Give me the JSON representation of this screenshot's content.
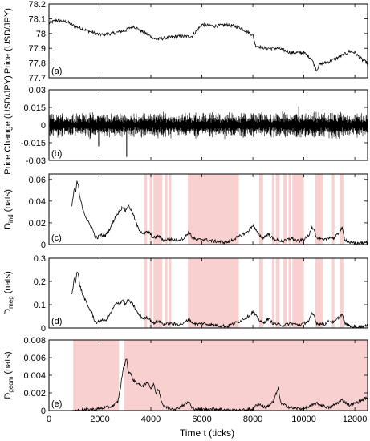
{
  "figure": {
    "xlabel": "Time t (ticks)",
    "x_tick_labels": [
      "0",
      "2000",
      "4000",
      "6000",
      "8000",
      "10000",
      "12000"
    ]
  },
  "chart_data": [
    {
      "type": "line",
      "panel_label": "(a)",
      "ylabel": "Price (USD/JPY)",
      "xlim": [
        0,
        12500
      ],
      "ylim": [
        77.7,
        78.2
      ],
      "y_ticks": [
        77.7,
        77.8,
        77.9,
        78,
        78.1,
        78.2
      ],
      "y_tick_labels": [
        "77.7",
        "77.8",
        "77.9",
        "78",
        "78.1",
        "78.2"
      ],
      "series": [
        {
          "x": [
            0,
            300,
            700,
            1000,
            1500,
            2000,
            2500,
            3000,
            3300,
            3800,
            4200,
            5000,
            5600,
            6000,
            6500,
            7000,
            7500,
            8000,
            8100,
            8500,
            9000,
            9500,
            10000,
            10300,
            10500,
            10600,
            11000,
            11500,
            11800,
            12000,
            12300,
            12500
          ],
          "y": [
            78.07,
            78.09,
            78.08,
            78.05,
            78.02,
            77.99,
            78.0,
            78.02,
            78.05,
            78.0,
            77.96,
            77.98,
            77.98,
            78.06,
            78.05,
            78.06,
            78.04,
            77.99,
            77.92,
            77.9,
            77.9,
            77.87,
            77.87,
            77.83,
            77.75,
            77.79,
            77.81,
            77.85,
            77.88,
            77.87,
            77.82,
            77.8
          ]
        }
      ],
      "shading": []
    },
    {
      "type": "line",
      "panel_label": "(b)",
      "ylabel": "Price Change (USD/JPY)",
      "xlim": [
        0,
        12500
      ],
      "ylim": [
        -0.03,
        0.03
      ],
      "y_ticks": [
        -0.03,
        -0.015,
        0,
        0.015,
        0.03
      ],
      "y_tick_labels": [
        "-0.03",
        "-0.015",
        "0",
        "0.015",
        "0.03"
      ],
      "style": "noise",
      "amplitude": 0.012,
      "spikes": [
        {
          "x": 3050,
          "y": -0.027
        },
        {
          "x": 1950,
          "y": -0.018
        },
        {
          "x": 9800,
          "y": 0.016
        }
      ],
      "shading": []
    },
    {
      "type": "line",
      "panel_label": "(c)",
      "ylabel_main": "D",
      "ylabel_sub": "ind",
      "ylabel_unit": " (nats)",
      "xlim": [
        0,
        12500
      ],
      "ylim": [
        0,
        0.065
      ],
      "y_ticks": [
        0,
        0.02,
        0.04,
        0.06
      ],
      "y_tick_labels": [
        "0",
        "0.02",
        "0.04",
        "0.06"
      ],
      "series": [
        {
          "x": [
            900,
            1000,
            1050,
            1100,
            1150,
            1200,
            1300,
            1500,
            1700,
            1800,
            1900,
            2000,
            2200,
            2400,
            2600,
            2800,
            2900,
            3000,
            3100,
            3200,
            3300,
            3500,
            3700,
            3900,
            4100,
            4300,
            4500,
            4700,
            5000,
            5300,
            5500,
            5600,
            5800,
            6000,
            6500,
            7000,
            7500,
            7800,
            8000,
            8200,
            8400,
            8600,
            8800,
            9000,
            9200,
            9500,
            9800,
            10000,
            10200,
            10300,
            10400,
            10500,
            10800,
            11000,
            11200,
            11400,
            11500,
            11600,
            11800,
            12000,
            12500
          ],
          "y": [
            0.035,
            0.052,
            0.048,
            0.058,
            0.055,
            0.045,
            0.035,
            0.022,
            0.015,
            0.008,
            0.006,
            0.009,
            0.008,
            0.015,
            0.025,
            0.032,
            0.035,
            0.031,
            0.036,
            0.033,
            0.028,
            0.015,
            0.01,
            0.012,
            0.006,
            0.008,
            0.004,
            0.005,
            0.004,
            0.006,
            0.012,
            0.007,
            0.004,
            0.005,
            0.003,
            0.002,
            0.008,
            0.012,
            0.018,
            0.01,
            0.006,
            0.01,
            0.005,
            0.004,
            0.003,
            0.006,
            0.003,
            0.005,
            0.008,
            0.016,
            0.015,
            0.006,
            0.004,
            0.007,
            0.006,
            0.012,
            0.015,
            0.005,
            0.002,
            0.001,
            0.002
          ]
        }
      ],
      "shading": [
        [
          3750,
          3850
        ],
        [
          3950,
          4050
        ],
        [
          4100,
          4450
        ],
        [
          4550,
          4650
        ],
        [
          4700,
          4800
        ],
        [
          5450,
          7450
        ],
        [
          8250,
          8400
        ],
        [
          8750,
          8850
        ],
        [
          8900,
          9050
        ],
        [
          9200,
          9350
        ],
        [
          9400,
          9500
        ],
        [
          9550,
          10000
        ],
        [
          10450,
          10750
        ],
        [
          11100,
          11200
        ],
        [
          11400,
          11550
        ]
      ]
    },
    {
      "type": "line",
      "panel_label": "(d)",
      "ylabel_main": "D",
      "ylabel_sub": "meg",
      "ylabel_unit": " (nats)",
      "xlim": [
        0,
        12500
      ],
      "ylim": [
        0,
        0.3
      ],
      "y_ticks": [
        0,
        0.1,
        0.2,
        0.3
      ],
      "y_tick_labels": [
        "0",
        "0.1",
        "0.2",
        "0.3"
      ],
      "series": [
        {
          "x": [
            900,
            1000,
            1050,
            1100,
            1150,
            1200,
            1300,
            1500,
            1700,
            1800,
            1900,
            2000,
            2200,
            2400,
            2600,
            2800,
            2900,
            3000,
            3100,
            3200,
            3300,
            3500,
            3700,
            3900,
            4100,
            4300,
            4500,
            4700,
            5000,
            5300,
            5500,
            5600,
            5800,
            6000,
            6500,
            7000,
            7500,
            7800,
            8000,
            8200,
            8400,
            8600,
            8800,
            9000,
            9200,
            9500,
            9800,
            10000,
            10200,
            10300,
            10400,
            10500,
            10800,
            11000,
            11200,
            11400,
            11500,
            11600,
            11800,
            12000,
            12500
          ],
          "y": [
            0.14,
            0.22,
            0.2,
            0.24,
            0.23,
            0.19,
            0.15,
            0.1,
            0.06,
            0.03,
            0.02,
            0.035,
            0.03,
            0.06,
            0.1,
            0.11,
            0.12,
            0.1,
            0.12,
            0.11,
            0.1,
            0.06,
            0.04,
            0.045,
            0.02,
            0.03,
            0.015,
            0.02,
            0.015,
            0.02,
            0.04,
            0.025,
            0.015,
            0.02,
            0.012,
            0.008,
            0.03,
            0.05,
            0.07,
            0.04,
            0.02,
            0.04,
            0.02,
            0.015,
            0.012,
            0.02,
            0.012,
            0.02,
            0.03,
            0.06,
            0.055,
            0.02,
            0.015,
            0.03,
            0.025,
            0.05,
            0.06,
            0.02,
            0.008,
            0.005,
            0.008
          ]
        }
      ],
      "shading": [
        [
          3750,
          3850
        ],
        [
          3950,
          4050
        ],
        [
          4100,
          4450
        ],
        [
          4550,
          4650
        ],
        [
          4700,
          4800
        ],
        [
          5450,
          7450
        ],
        [
          8250,
          8400
        ],
        [
          8750,
          8850
        ],
        [
          8900,
          9050
        ],
        [
          9200,
          9350
        ],
        [
          9400,
          9500
        ],
        [
          9550,
          10000
        ],
        [
          10450,
          10750
        ],
        [
          11100,
          11200
        ],
        [
          11400,
          11550
        ]
      ]
    },
    {
      "type": "line",
      "panel_label": "(e)",
      "ylabel_main": "D",
      "ylabel_sub": "geom",
      "ylabel_unit": " (nats)",
      "xlim": [
        0,
        12500
      ],
      "ylim": [
        0,
        0.008
      ],
      "y_ticks": [
        0,
        0.002,
        0.004,
        0.006,
        0.008
      ],
      "y_tick_labels": [
        "0",
        "0.002",
        "0.004",
        "0.006",
        "0.008"
      ],
      "series": [
        {
          "x": [
            900,
            1000,
            1500,
            2000,
            2500,
            2700,
            2800,
            2900,
            3000,
            3050,
            3100,
            3200,
            3300,
            3500,
            3700,
            3900,
            4000,
            4100,
            4200,
            4300,
            4400,
            4500,
            4700,
            5000,
            5500,
            5600,
            6000,
            6500,
            7000,
            7500,
            8000,
            8200,
            8500,
            8800,
            8900,
            9000,
            9100,
            9500,
            10000,
            10500,
            11000,
            11500,
            11800,
            12000,
            12500
          ],
          "y": [
            0.0,
            0.0,
            0.0001,
            0.0002,
            0.0005,
            0.001,
            0.0025,
            0.0045,
            0.0055,
            0.006,
            0.0045,
            0.0042,
            0.0035,
            0.003,
            0.0028,
            0.0032,
            0.0025,
            0.003,
            0.002,
            0.0025,
            0.0012,
            0.0005,
            0.0003,
            0.0002,
            0.001,
            0.0003,
            0.0001,
            0.0002,
            0.0001,
            0.0,
            0.0002,
            0.0008,
            0.0003,
            0.001,
            0.0018,
            0.0025,
            0.0008,
            0.0003,
            0.0002,
            0.0008,
            0.0003,
            0.0012,
            0.0006,
            0.0008,
            0.0015
          ]
        }
      ],
      "shading": [
        [
          950,
          2750
        ],
        [
          2950,
          12500
        ]
      ]
    }
  ],
  "colors": {
    "line": "#000000",
    "shade": "#f8d0d0",
    "axis": "#000000"
  }
}
